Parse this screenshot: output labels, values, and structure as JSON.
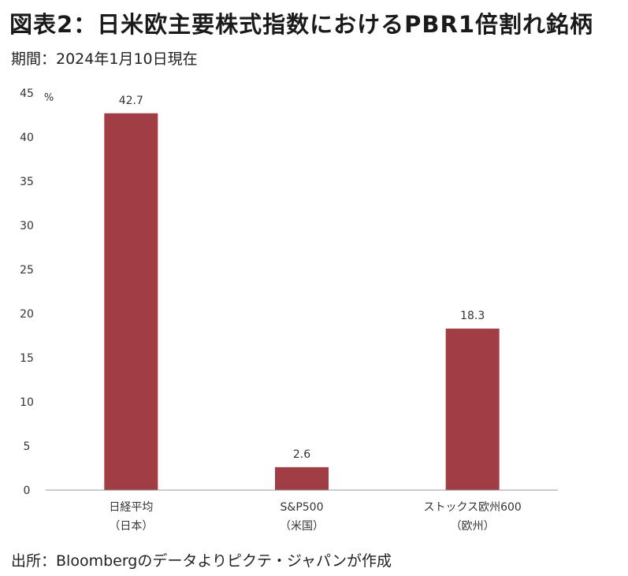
{
  "header": {
    "title": "図表2：日米欧主要株式指数におけるPBR1倍割れ銘柄",
    "subtitle": "期間：2024年1月10日現在"
  },
  "footer": {
    "source": "出所：Bloombergのデータよりピクテ・ジャパンが作成"
  },
  "chart_data": {
    "type": "bar",
    "categories": [
      [
        "日経平均",
        "（日本）"
      ],
      [
        "S&P500",
        "（米国）"
      ],
      [
        "ストックス欧州600",
        "（欧州）"
      ]
    ],
    "values": [
      42.7,
      2.6,
      18.3
    ],
    "data_labels": [
      "42.7",
      "2.6",
      "18.3"
    ],
    "ylabel": "%",
    "ylim": [
      0,
      45
    ],
    "yticks": [
      0,
      5,
      10,
      15,
      20,
      25,
      30,
      35,
      40,
      45
    ],
    "grid": false,
    "legend": "none",
    "bar_color": "#a13d44"
  }
}
